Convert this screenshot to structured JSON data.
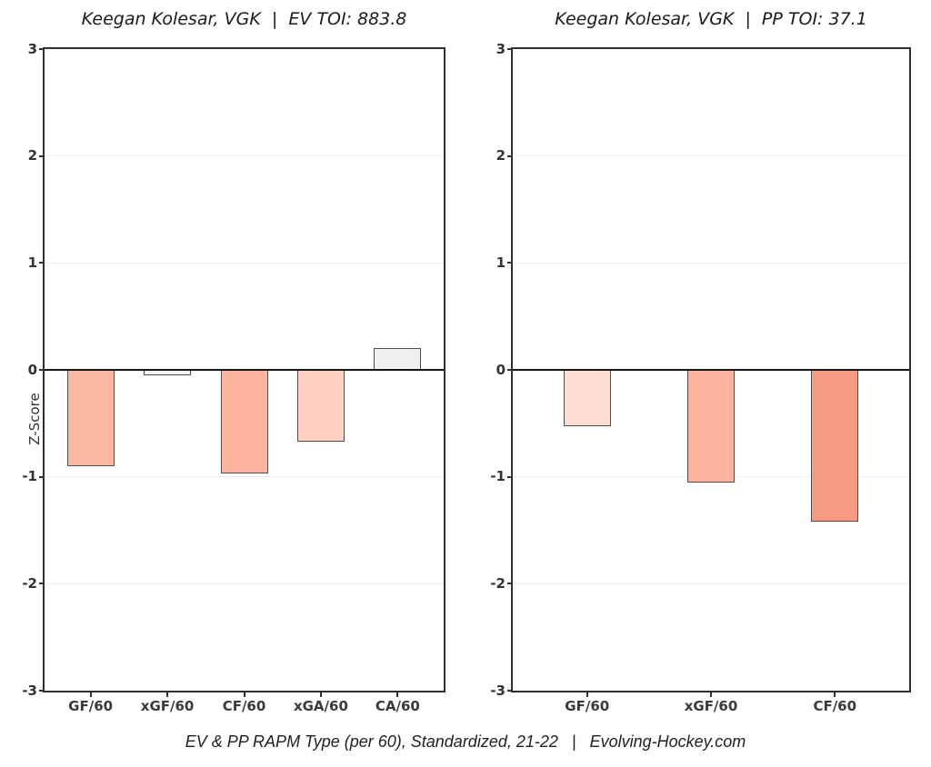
{
  "figure": {
    "caption": "EV & PP RAPM Type (per 60), Standardized, 21-22   |   Evolving-Hockey.com",
    "background": "#ffffff"
  },
  "colors": {
    "axis_border": "#2e2e2e",
    "grid": "#ececec",
    "zero_line": "#151515",
    "bar_outline": "#4d4d4d",
    "tick_text": "#333333",
    "title_text": "#1a1a1a"
  },
  "chart_data": [
    {
      "type": "bar",
      "title": "Keegan Kolesar, VGK  |  EV TOI: 883.8",
      "ylabel": "Z-Score",
      "xlabel": "",
      "ylim": [
        -3,
        3
      ],
      "yticks": [
        3,
        2,
        1,
        0,
        -1,
        -2,
        -3
      ],
      "grid": "horizontal",
      "legend": "none",
      "categories": [
        "GF/60",
        "xGF/60",
        "CF/60",
        "xGA/60",
        "CA/60"
      ],
      "values": [
        -0.9,
        -0.05,
        -0.97,
        -0.67,
        0.2
      ],
      "bar_colors": [
        "#fcb8a3",
        "#f4f4f4",
        "#fcb5a0",
        "#fed1c4",
        "#f0f0f0"
      ]
    },
    {
      "type": "bar",
      "title": "Keegan Kolesar, VGK  |  PP TOI: 37.1",
      "ylabel": "Z-Score",
      "xlabel": "",
      "ylim": [
        -3,
        3
      ],
      "yticks": [
        3,
        2,
        1,
        0,
        -1,
        -2,
        -3
      ],
      "grid": "horizontal",
      "legend": "none",
      "categories": [
        "GF/60",
        "xGF/60",
        "CF/60"
      ],
      "values": [
        -0.53,
        -1.05,
        -1.42
      ],
      "bar_colors": [
        "#fddcd2",
        "#fcb3a0",
        "#f69b82"
      ]
    }
  ]
}
